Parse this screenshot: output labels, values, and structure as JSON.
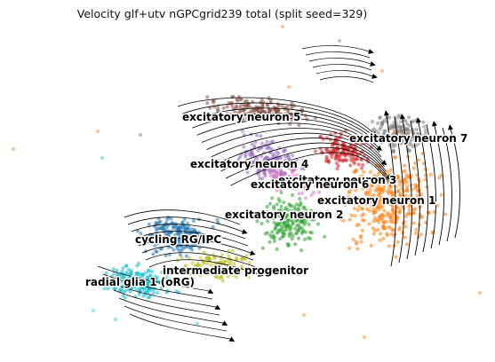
{
  "title": "Velocity glf+utv nGPCgrid239 total (split seed=329)",
  "chart_data": {
    "type": "scatter",
    "title": "Velocity glf+utv nGPCgrid239 total (split seed=329)",
    "xlabel": "",
    "ylabel": "",
    "grid": false,
    "legend": "on data",
    "overlay": "velocity streamlines with arrowheads",
    "clusters": [
      {
        "name": "excitatory neuron 5",
        "color": "#8c564b"
      },
      {
        "name": "excitatory neuron 7",
        "color": "#7f7f7f"
      },
      {
        "name": "excitatory neuron 4",
        "color": "#9467bd"
      },
      {
        "name": "excitatory neuron 3",
        "color": "#d62728"
      },
      {
        "name": "excitatory neuron 6",
        "color": "#e377c2"
      },
      {
        "name": "excitatory neuron 1",
        "color": "#ff7f0e"
      },
      {
        "name": "excitatory neuron 2",
        "color": "#2ca02c"
      },
      {
        "name": "cycling RG/IPC",
        "color": "#1f77b4"
      },
      {
        "name": "intermediate progenitor",
        "color": "#bcbd22"
      },
      {
        "name": "radial glia 1 (oRG)",
        "color": "#17becf"
      }
    ]
  }
}
